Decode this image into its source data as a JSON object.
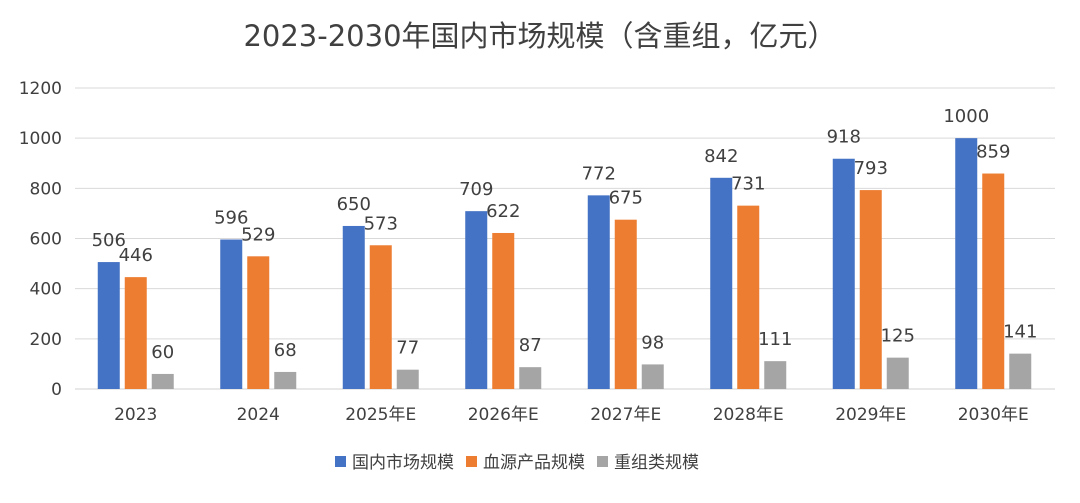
{
  "chart_data": {
    "type": "bar",
    "title": "2023-2030年国内市场规模（含重组，亿元）",
    "xlabel": "",
    "ylabel": "",
    "ylim": [
      0,
      1200
    ],
    "yticks": [
      0,
      200,
      400,
      600,
      800,
      1000,
      1200
    ],
    "grid": true,
    "legend_position": "bottom",
    "categories": [
      "2023",
      "2024",
      "2025年E",
      "2026年E",
      "2027年E",
      "2028年E",
      "2029年E",
      "2030年E"
    ],
    "series": [
      {
        "name": "国内市场规模",
        "color": "#4472C4",
        "values": [
          506,
          596,
          650,
          709,
          772,
          842,
          918,
          1000
        ]
      },
      {
        "name": "血源产品规模",
        "color": "#ED7D31",
        "values": [
          446,
          529,
          573,
          622,
          675,
          731,
          793,
          859
        ]
      },
      {
        "name": "重组类规模",
        "color": "#A5A5A5",
        "values": [
          60,
          68,
          77,
          87,
          98,
          111,
          125,
          141
        ]
      }
    ]
  }
}
